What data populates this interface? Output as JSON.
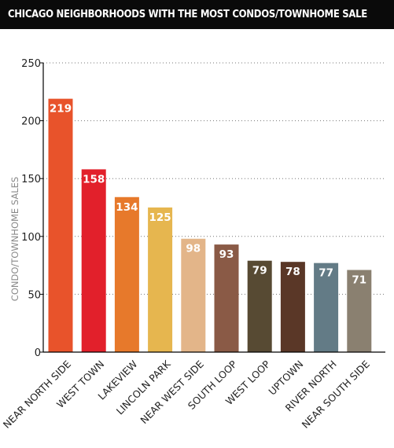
{
  "title": "CHICAGO NEIGHBORHOODS WITH THE MOST CONDOS/TOWNHOME SALE",
  "chart_data": {
    "type": "bar",
    "title": "CHICAGO NEIGHBORHOODS WITH THE MOST CONDOS/TOWNHOME SALE",
    "xlabel": "",
    "ylabel": "CONDO/TOWNHOME SALES",
    "ylim": [
      0,
      250
    ],
    "yticks": [
      "0",
      "50",
      "100",
      "150",
      "200",
      "250"
    ],
    "grid": "horizontal dotted",
    "categories": [
      "NEAR NORTH SIDE",
      "WEST TOWN",
      "LAKEVIEW",
      "LINCOLN PARK",
      "NEAR WEST SIDE",
      "SOUTH LOOP",
      "WEST LOOP",
      "UPTOWN",
      "RIVER NORTH",
      "NEAR SOUTH SIDE"
    ],
    "values": [
      219,
      158,
      134,
      125,
      98,
      93,
      79,
      78,
      77,
      71
    ],
    "colors": [
      "#e8532b",
      "#e2202b",
      "#e7792b",
      "#e6b64f",
      "#e3b589",
      "#8a5a46",
      "#574a33",
      "#5a3727",
      "#637b86",
      "#8a8070"
    ]
  }
}
